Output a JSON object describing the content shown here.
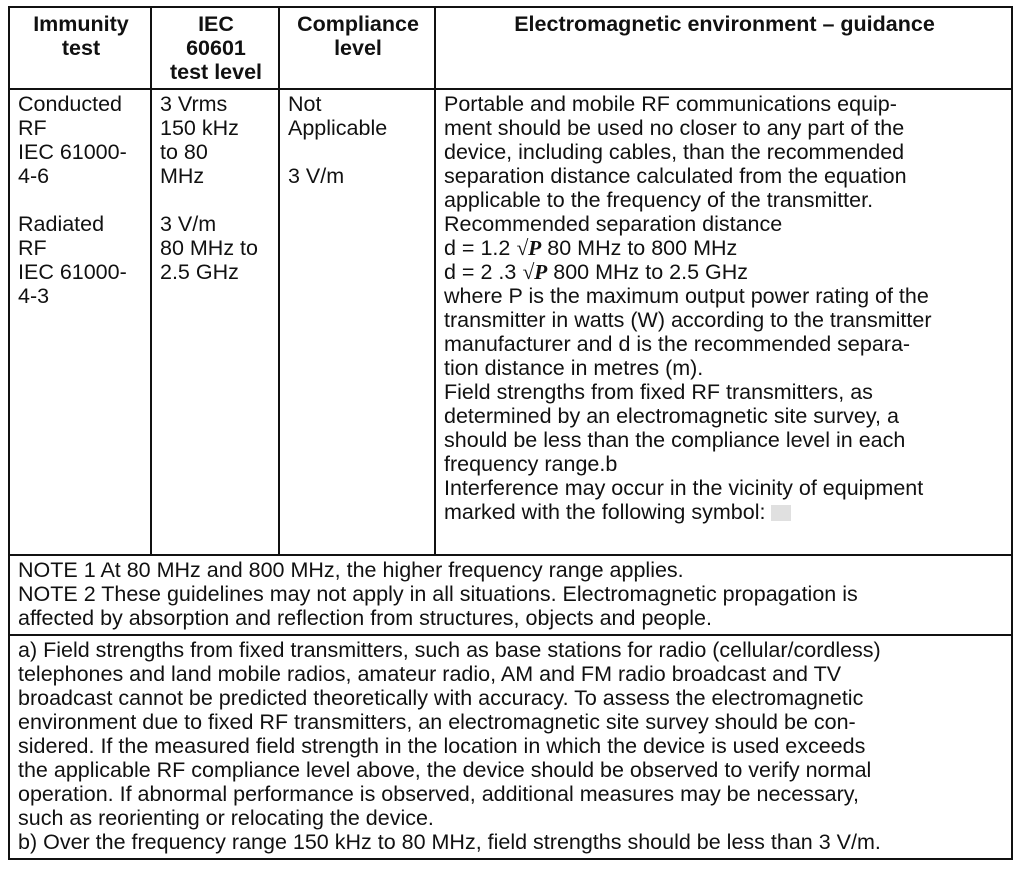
{
  "headers": [
    "Immunity test",
    "IEC 60601 test level",
    "Compliance level",
    "Electromagnetic environment – guidance"
  ],
  "header_lines": [
    [
      "Immunity",
      "test"
    ],
    [
      "IEC",
      "60601",
      "test level"
    ],
    [
      "Compliance",
      "level"
    ],
    [
      "Electromagnetic environment – guidance"
    ]
  ],
  "col1": {
    "a": [
      "Conducted",
      "RF",
      "IEC 61000-",
      "4-6"
    ],
    "b": [
      "Radiated",
      "RF",
      "IEC 61000-",
      "4-3"
    ]
  },
  "col2": {
    "a": [
      "3 Vrms",
      "150 kHz",
      "to 80",
      "MHz"
    ],
    "b": [
      "3 V/m",
      "80 MHz to",
      "2.5 GHz"
    ]
  },
  "col3": {
    "a": [
      "Not",
      "Applicable"
    ],
    "b": "3 V/m"
  },
  "guidance": {
    "intro": [
      "Portable and mobile RF communications equip-",
      "ment should be used no closer to any part of the",
      "device, including cables, than the recommended",
      "separation distance calculated from the equation",
      "applicable to the frequency of the transmitter.",
      "Recommended separation distance"
    ],
    "formula1": {
      "prefix": "d = 1.2",
      "sqrt": "√P",
      "range": "80 MHz to 800 MHz"
    },
    "formula2": {
      "prefix": "d = 2 .3",
      "sqrt": "√P",
      "range": "800 MHz to 2.5 GHz"
    },
    "rest": [
      "where P is the maximum output power rating of the",
      "transmitter in watts (W) according to the transmitter",
      "manufacturer and d is the recommended separa-",
      "tion distance in metres (m).",
      "Field strengths from fixed RF transmitters, as",
      "determined by an electromagnetic site survey, a",
      "should be less than the compliance level in each",
      "frequency range.b",
      "Interference may occur in the vicinity of equipment"
    ],
    "last": "marked with the following symbol:",
    "symbol_icon": "non-ionizing-radiation-icon"
  },
  "notes": [
    "NOTE 1 At 80 MHz and 800 MHz, the higher frequency range applies.",
    "NOTE 2 These guidelines may not apply in all situations. Electromagnetic propagation is",
    "affected by absorption and reflection from structures, objects and people."
  ],
  "footnotes": [
    "a) Field strengths from fixed transmitters, such as base stations for radio (cellular/cordless)",
    "telephones and land mobile radios, amateur radio, AM and FM radio broadcast and TV",
    "broadcast cannot be predicted theoretically with accuracy. To assess the electromagnetic",
    "environment due to fixed RF transmitters, an electromagnetic site survey should be con-",
    "sidered. If the measured field strength in the location in which the device is used exceeds",
    "the applicable RF compliance level above, the device should be observed to verify normal",
    "operation. If abnormal performance is observed, additional measures may be necessary,",
    "such as reorienting or relocating the device.",
    "b) Over the frequency range 150 kHz to 80 MHz, field strengths should be less than 3 V/m."
  ]
}
